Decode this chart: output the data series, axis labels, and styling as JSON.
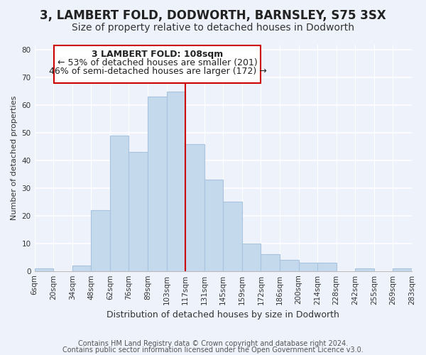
{
  "title": "3, LAMBERT FOLD, DODWORTH, BARNSLEY, S75 3SX",
  "subtitle": "Size of property relative to detached houses in Dodworth",
  "xlabel": "Distribution of detached houses by size in Dodworth",
  "ylabel": "Number of detached properties",
  "tick_labels": [
    "6sqm",
    "20sqm",
    "34sqm",
    "48sqm",
    "62sqm",
    "76sqm",
    "89sqm",
    "103sqm",
    "117sqm",
    "131sqm",
    "145sqm",
    "159sqm",
    "172sqm",
    "186sqm",
    "200sqm",
    "214sqm",
    "228sqm",
    "242sqm",
    "255sqm",
    "269sqm",
    "283sqm"
  ],
  "values": [
    1,
    0,
    2,
    22,
    49,
    43,
    63,
    65,
    46,
    33,
    25,
    10,
    6,
    4,
    3,
    3,
    0,
    1,
    0,
    1
  ],
  "bar_color": "#c5d9ed",
  "bar_edge_color": "#a8c4de",
  "highlight_line_color": "#cc0000",
  "highlight_line_index": 7,
  "ylim": [
    0,
    82
  ],
  "yticks": [
    0,
    10,
    20,
    30,
    40,
    50,
    60,
    70,
    80
  ],
  "annotation_title": "3 LAMBERT FOLD: 108sqm",
  "annotation_line1": "← 53% of detached houses are smaller (201)",
  "annotation_line2": "46% of semi-detached houses are larger (172) →",
  "annotation_box_facecolor": "#ffffff",
  "annotation_box_edgecolor": "#cc0000",
  "footer1": "Contains HM Land Registry data © Crown copyright and database right 2024.",
  "footer2": "Contains public sector information licensed under the Open Government Licence v3.0.",
  "background_color": "#eef2fa",
  "grid_color": "#ffffff",
  "title_fontsize": 12,
  "subtitle_fontsize": 10,
  "annotation_fontsize": 9,
  "footer_fontsize": 7,
  "ylabel_fontsize": 8,
  "xlabel_fontsize": 9,
  "tick_fontsize": 7.5
}
